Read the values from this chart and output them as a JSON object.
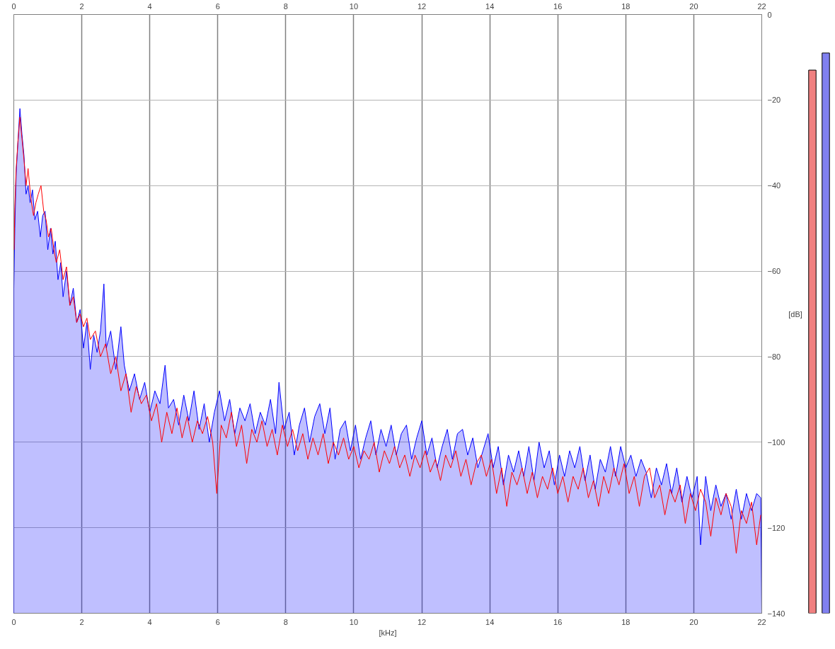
{
  "chart_data": [
    {
      "type": "area",
      "xlabel": "[kHz]",
      "ylabel": "[dB]",
      "xlim": [
        0,
        22
      ],
      "xticks": [
        0,
        2,
        4,
        6,
        8,
        10,
        12,
        14,
        16,
        18,
        20,
        22
      ],
      "x2lim": [
        0,
        22
      ],
      "x2ticks": [
        0,
        2,
        4,
        6,
        8,
        10,
        12,
        14,
        16,
        18,
        20,
        22
      ],
      "ylim": [
        -140,
        0
      ],
      "yticks": [
        0,
        -20,
        -40,
        -60,
        -80,
        -100,
        -120,
        -140
      ],
      "grid": true,
      "series": [
        {
          "type": "line",
          "color": "#ff0000",
          "x": [
            0.01,
            0.03,
            0.07,
            0.12,
            0.18,
            0.24,
            0.3,
            0.36,
            0.42,
            0.5,
            0.58,
            0.65,
            0.72,
            0.8,
            0.88,
            0.95,
            1.02,
            1.1,
            1.18,
            1.25,
            1.35,
            1.45,
            1.55,
            1.65,
            1.75,
            1.85,
            1.95,
            2.05,
            2.15,
            2.25,
            2.4,
            2.55,
            2.7,
            2.85,
            3.0,
            3.15,
            3.3,
            3.45,
            3.6,
            3.75,
            3.9,
            4.05,
            4.2,
            4.35,
            4.5,
            4.65,
            4.8,
            4.95,
            5.1,
            5.25,
            5.4,
            5.55,
            5.7,
            5.85,
            5.97,
            6.1,
            6.25,
            6.4,
            6.55,
            6.7,
            6.85,
            7.0,
            7.15,
            7.3,
            7.45,
            7.6,
            7.75,
            7.9,
            8.05,
            8.2,
            8.35,
            8.5,
            8.65,
            8.8,
            8.95,
            9.1,
            9.25,
            9.4,
            9.55,
            9.7,
            9.85,
            10.0,
            10.15,
            10.3,
            10.45,
            10.6,
            10.75,
            10.9,
            11.05,
            11.2,
            11.35,
            11.5,
            11.65,
            11.8,
            11.95,
            12.1,
            12.25,
            12.4,
            12.55,
            12.7,
            12.85,
            13.0,
            13.15,
            13.3,
            13.45,
            13.6,
            13.75,
            13.9,
            14.05,
            14.2,
            14.35,
            14.5,
            14.65,
            14.8,
            14.95,
            15.1,
            15.25,
            15.4,
            15.55,
            15.7,
            15.85,
            16.0,
            16.15,
            16.3,
            16.45,
            16.6,
            16.75,
            16.9,
            17.05,
            17.2,
            17.35,
            17.5,
            17.65,
            17.8,
            17.95,
            18.1,
            18.25,
            18.4,
            18.55,
            18.7,
            18.85,
            19.0,
            19.15,
            19.3,
            19.45,
            19.6,
            19.75,
            19.9,
            20.05,
            20.2,
            20.35,
            20.5,
            20.65,
            20.8,
            20.95,
            21.1,
            21.25,
            21.4,
            21.55,
            21.7,
            21.85,
            21.97
          ],
          "values": [
            -55,
            -45,
            -36,
            -30,
            -24,
            -29,
            -34,
            -40,
            -36,
            -43,
            -47,
            -44,
            -42,
            -40,
            -46,
            -48,
            -52,
            -50,
            -55,
            -58,
            -55,
            -62,
            -59,
            -68,
            -66,
            -72,
            -70,
            -73,
            -71,
            -76,
            -74,
            -80,
            -77,
            -84,
            -80,
            -88,
            -84,
            -93,
            -87,
            -91,
            -89,
            -95,
            -91,
            -100,
            -93,
            -98,
            -92,
            -99,
            -94,
            -100,
            -95,
            -98,
            -94,
            -100,
            -112,
            -96,
            -99,
            -93,
            -101,
            -96,
            -105,
            -97,
            -100,
            -95,
            -101,
            -97,
            -103,
            -96,
            -101,
            -97,
            -102,
            -98,
            -104,
            -99,
            -103,
            -98,
            -105,
            -100,
            -103,
            -99,
            -104,
            -101,
            -106,
            -102,
            -104,
            -100,
            -107,
            -102,
            -105,
            -101,
            -106,
            -103,
            -108,
            -103,
            -106,
            -102,
            -107,
            -104,
            -109,
            -103,
            -106,
            -102,
            -108,
            -104,
            -110,
            -105,
            -103,
            -108,
            -104,
            -112,
            -106,
            -115,
            -107,
            -110,
            -106,
            -112,
            -107,
            -113,
            -108,
            -111,
            -106,
            -112,
            -108,
            -114,
            -108,
            -111,
            -106,
            -113,
            -109,
            -115,
            -108,
            -112,
            -106,
            -110,
            -105,
            -112,
            -108,
            -115,
            -108,
            -106,
            -113,
            -110,
            -117,
            -111,
            -114,
            -110,
            -119,
            -112,
            -116,
            -111,
            -114,
            -122,
            -113,
            -117,
            -112,
            -115,
            -126,
            -116,
            -119,
            -114,
            -124,
            -117
          ]
        },
        {
          "type": "area",
          "color": "#0000ff",
          "x": [
            0.0,
            0.0,
            0.03,
            0.07,
            0.12,
            0.18,
            0.24,
            0.3,
            0.36,
            0.42,
            0.48,
            0.55,
            0.62,
            0.7,
            0.78,
            0.85,
            0.92,
            1.0,
            1.08,
            1.15,
            1.22,
            1.3,
            1.38,
            1.45,
            1.55,
            1.65,
            1.75,
            1.85,
            1.95,
            2.05,
            2.15,
            2.25,
            2.35,
            2.45,
            2.55,
            2.65,
            2.72,
            2.85,
            3.0,
            3.15,
            3.25,
            3.4,
            3.55,
            3.7,
            3.85,
            4.0,
            4.15,
            4.3,
            4.45,
            4.55,
            4.7,
            4.85,
            5.0,
            5.15,
            5.3,
            5.45,
            5.6,
            5.75,
            5.9,
            6.05,
            6.2,
            6.35,
            6.5,
            6.65,
            6.8,
            6.95,
            7.1,
            7.25,
            7.4,
            7.55,
            7.7,
            7.8,
            7.95,
            8.1,
            8.25,
            8.4,
            8.55,
            8.7,
            8.85,
            9.0,
            9.15,
            9.3,
            9.45,
            9.6,
            9.75,
            9.9,
            10.05,
            10.2,
            10.35,
            10.5,
            10.65,
            10.8,
            10.95,
            11.1,
            11.25,
            11.4,
            11.55,
            11.7,
            11.85,
            12.0,
            12.15,
            12.3,
            12.45,
            12.6,
            12.75,
            12.9,
            13.05,
            13.2,
            13.35,
            13.5,
            13.65,
            13.8,
            13.95,
            14.1,
            14.25,
            14.4,
            14.55,
            14.7,
            14.85,
            15.0,
            15.15,
            15.3,
            15.45,
            15.6,
            15.75,
            15.9,
            16.05,
            16.2,
            16.35,
            16.5,
            16.65,
            16.8,
            16.95,
            17.1,
            17.25,
            17.4,
            17.55,
            17.7,
            17.85,
            18.0,
            18.15,
            18.3,
            18.45,
            18.6,
            18.75,
            18.9,
            19.05,
            19.2,
            19.35,
            19.5,
            19.65,
            19.8,
            19.95,
            20.1,
            20.2,
            20.35,
            20.5,
            20.65,
            20.8,
            20.95,
            21.1,
            21.25,
            21.4,
            21.55,
            21.7,
            21.85,
            21.97,
            22.0
          ],
          "values": [
            -140,
            -64,
            -50,
            -37,
            -30,
            -22,
            -28,
            -33,
            -42,
            -40,
            -44,
            -41,
            -48,
            -46,
            -52,
            -47,
            -46,
            -55,
            -50,
            -56,
            -53,
            -62,
            -58,
            -66,
            -60,
            -68,
            -64,
            -72,
            -69,
            -78,
            -72,
            -83,
            -75,
            -79,
            -74,
            -63,
            -78,
            -74,
            -83,
            -73,
            -82,
            -88,
            -84,
            -90,
            -86,
            -93,
            -88,
            -91,
            -82,
            -92,
            -90,
            -96,
            -89,
            -95,
            -88,
            -97,
            -91,
            -100,
            -93,
            -88,
            -95,
            -90,
            -98,
            -92,
            -95,
            -91,
            -98,
            -93,
            -96,
            -90,
            -98,
            -86,
            -97,
            -93,
            -103,
            -96,
            -92,
            -100,
            -94,
            -91,
            -98,
            -92,
            -104,
            -97,
            -95,
            -102,
            -96,
            -104,
            -99,
            -95,
            -103,
            -97,
            -101,
            -96,
            -103,
            -98,
            -96,
            -104,
            -99,
            -95,
            -103,
            -99,
            -106,
            -101,
            -97,
            -104,
            -98,
            -97,
            -103,
            -99,
            -106,
            -102,
            -98,
            -106,
            -101,
            -110,
            -103,
            -107,
            -102,
            -108,
            -101,
            -109,
            -100,
            -106,
            -102,
            -110,
            -103,
            -108,
            -102,
            -106,
            -101,
            -109,
            -103,
            -111,
            -104,
            -107,
            -101,
            -108,
            -101,
            -106,
            -103,
            -108,
            -104,
            -107,
            -113,
            -106,
            -110,
            -105,
            -112,
            -106,
            -114,
            -108,
            -113,
            -108,
            -124,
            -108,
            -116,
            -110,
            -115,
            -112,
            -118,
            -111,
            -118,
            -112,
            -116,
            -112,
            -113,
            -140
          ]
        }
      ]
    },
    {
      "type": "bar",
      "categories": [
        null,
        null
      ],
      "base": [
        -140,
        -140
      ],
      "values": [
        127,
        131
      ],
      "colors": [
        "#f08080",
        "#8080f0"
      ],
      "ylim": [
        -140,
        0
      ],
      "tick_labels": false
    }
  ]
}
